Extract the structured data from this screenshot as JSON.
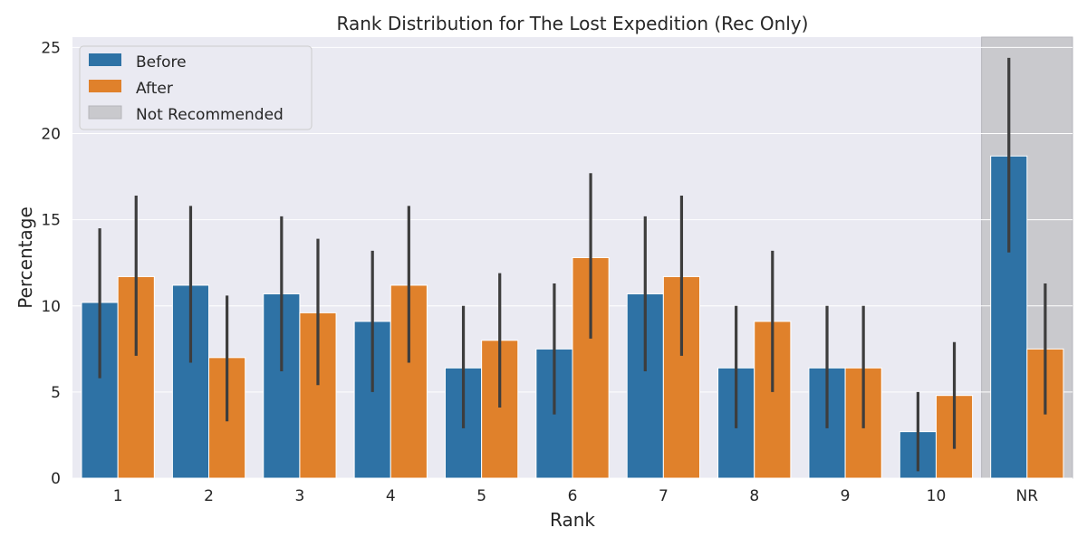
{
  "chart_data": {
    "type": "bar",
    "title": "Rank Distribution for The Lost Expedition (Rec Only)",
    "xlabel": "Rank",
    "ylabel": "Percentage",
    "ylim": [
      0,
      25.6
    ],
    "yticks": [
      0,
      5,
      10,
      15,
      20,
      25
    ],
    "categories": [
      "1",
      "2",
      "3",
      "4",
      "5",
      "6",
      "7",
      "8",
      "9",
      "10",
      "NR"
    ],
    "series": [
      {
        "name": "Before",
        "color": "#2e72a5",
        "values": [
          10.2,
          11.2,
          10.7,
          9.1,
          6.4,
          7.5,
          10.7,
          6.4,
          6.4,
          2.7,
          18.7
        ],
        "error_low": [
          5.8,
          6.7,
          6.2,
          5.0,
          2.9,
          3.7,
          6.2,
          2.9,
          2.9,
          0.4,
          13.1
        ],
        "error_high": [
          14.5,
          15.8,
          15.2,
          13.2,
          10.0,
          11.3,
          15.2,
          10.0,
          10.0,
          5.0,
          24.4
        ]
      },
      {
        "name": "After",
        "color": "#e0812b",
        "values": [
          11.7,
          7.0,
          9.6,
          11.2,
          8.0,
          12.8,
          11.7,
          9.1,
          6.4,
          4.8,
          7.5
        ],
        "error_low": [
          7.1,
          3.3,
          5.4,
          6.7,
          4.1,
          8.1,
          7.1,
          5.0,
          2.9,
          1.7,
          3.7
        ],
        "error_high": [
          16.4,
          10.6,
          13.9,
          15.8,
          11.9,
          17.7,
          16.4,
          13.2,
          10.0,
          7.9,
          11.3
        ]
      }
    ],
    "highlight": {
      "category": "NR",
      "label": "Not Recommended",
      "color": "#c9c9cd"
    },
    "grid": true,
    "legend": {
      "position": "top-left",
      "entries": [
        "Before",
        "After",
        "Not Recommended"
      ]
    },
    "background": "#eaeaf2"
  }
}
